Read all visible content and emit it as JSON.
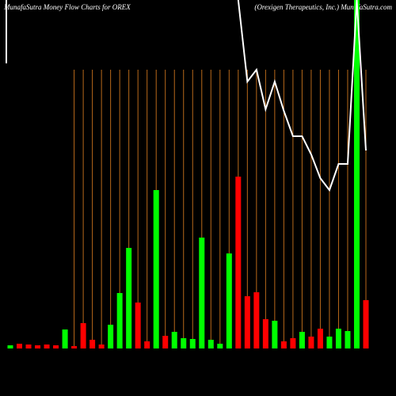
{
  "chart_data": {
    "type": "money-flow",
    "title": "MunafaSutra  Money Flow  Charts for OREX",
    "subtitle": "(Orexigen  Therapeutics,  Inc.) MunafaSutra.com",
    "categories": [
      null,
      null,
      null,
      null,
      null,
      null,
      null,
      null,
      null,
      null,
      null,
      null,
      null,
      null,
      null,
      null,
      null,
      null,
      null,
      null,
      null,
      null,
      null,
      null,
      null,
      null,
      null,
      null,
      null,
      null,
      null,
      null,
      null,
      null,
      null,
      null,
      null,
      null,
      null,
      null
    ],
    "series": [
      {
        "type": "bar",
        "colors": [
          "#00ff00",
          "#ff0000",
          "#ff0000",
          "#ff0000",
          "#ff0000",
          "#ff0000",
          "#00ff00",
          "#ff0000",
          "#ff0000",
          "#ff0000",
          "#ff0000",
          "#00ff00",
          "#00ff00",
          "#00ff00",
          "#ff0000",
          "#ff0000",
          "#00ff00",
          "#ff0000",
          "#00ff00",
          "#00ff00",
          "#00ff00",
          "#00ff00",
          "#00ff00",
          "#00ff00",
          "#00ff00",
          "#ff0000",
          "#ff0000",
          "#ff0000",
          "#ff0000",
          "#00ff00",
          "#ff0000",
          "#ff0000",
          "#00ff00",
          "#ff0000",
          "#ff0000",
          "#00ff00",
          "#00ff00",
          "#00ff00",
          "#00ff00",
          "#ff0000"
        ],
        "values": [
          4,
          6,
          5,
          4,
          5,
          4,
          24,
          3,
          32,
          11,
          5,
          30,
          70,
          127,
          58,
          9,
          200,
          16,
          21,
          13,
          12,
          140,
          11,
          6,
          120,
          217,
          66,
          71,
          37,
          35,
          9,
          13,
          21,
          15,
          25,
          15,
          25,
          22,
          440,
          61
        ]
      },
      {
        "type": "line",
        "axis": "y2",
        "color": "#ffffff",
        "values": [
          420,
          null,
          null,
          null,
          null,
          null,
          null,
          null,
          null,
          null,
          null,
          null,
          null,
          null,
          null,
          null,
          null,
          null,
          null,
          null,
          null,
          null,
          null,
          null,
          null,
          500,
          397,
          412,
          362,
          397,
          360,
          328,
          328,
          305,
          275,
          260,
          293,
          293,
          500,
          310
        ]
      }
    ],
    "ylim": [
      0,
      440
    ],
    "y2lim": [
      0,
      500
    ],
    "grid_color": "#b8691a"
  }
}
